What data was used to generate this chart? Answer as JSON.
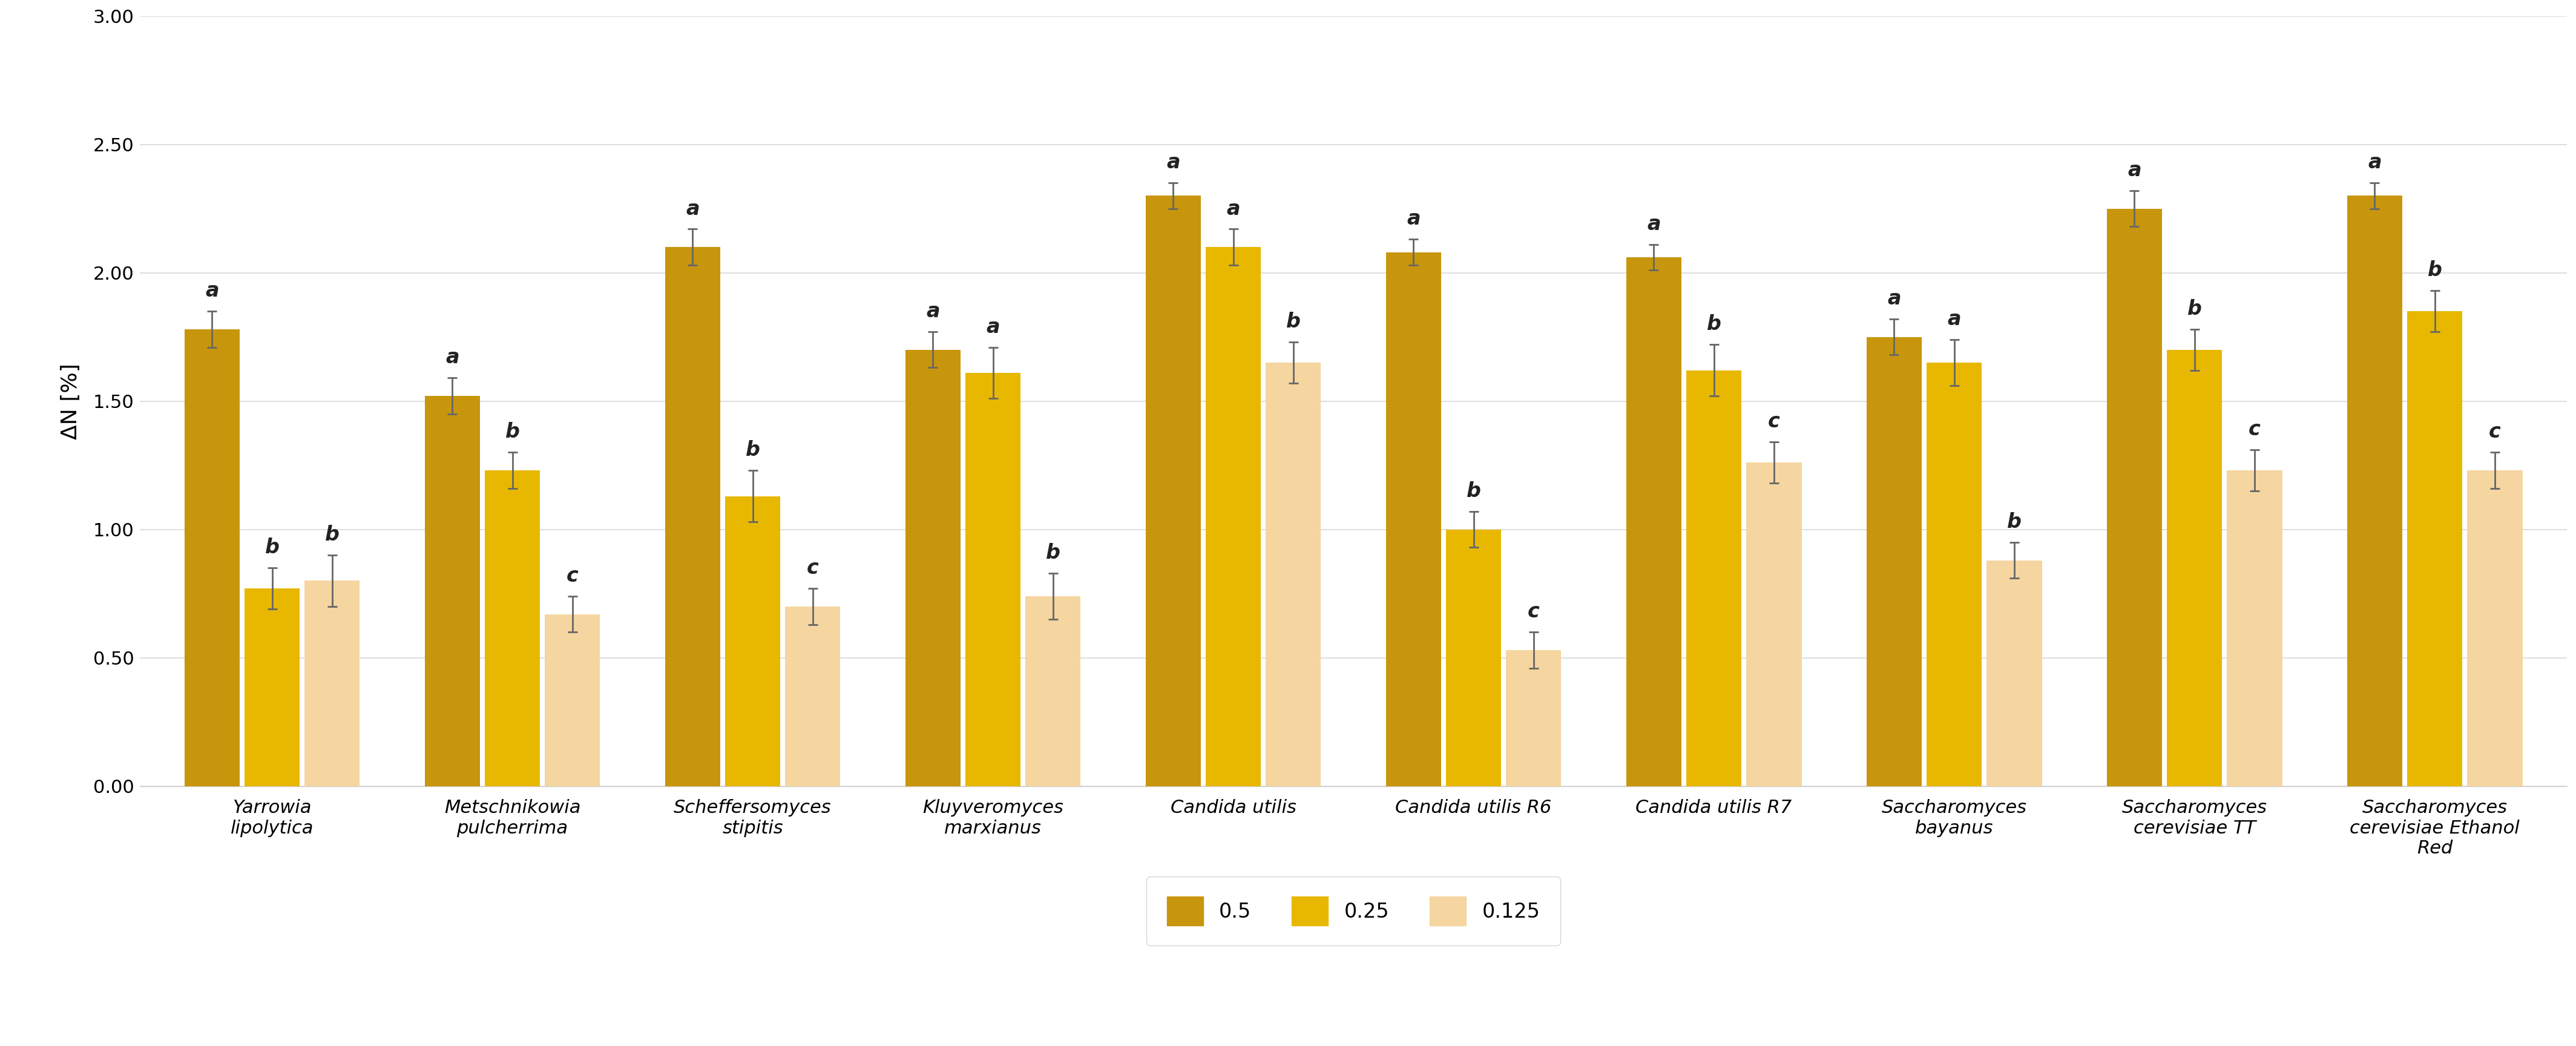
{
  "categories": [
    "Yarrowia\nlipolytica",
    "Metschnikowia\npulcherrima",
    "Scheffersomyces\nstipitis",
    "Kluyveromyces\nmarxianus",
    "Candida utilis",
    "Candida utilis R6",
    "Candida utilis R7",
    "Saccharomyces\nbayanus",
    "Saccharomyces\ncerevisiae TT",
    "Saccharomyces\ncerevisiae Ethanol\nRed"
  ],
  "series": {
    "0.5": {
      "values": [
        1.78,
        1.52,
        2.1,
        1.7,
        2.3,
        2.08,
        2.06,
        1.75,
        2.25,
        2.3
      ],
      "errors": [
        0.07,
        0.07,
        0.07,
        0.07,
        0.05,
        0.05,
        0.05,
        0.07,
        0.07,
        0.05
      ],
      "color": "#C8960C",
      "labels": [
        "a",
        "a",
        "a",
        "a",
        "a",
        "a",
        "a",
        "a",
        "a",
        "a"
      ]
    },
    "0.25": {
      "values": [
        0.77,
        1.23,
        1.13,
        1.61,
        2.1,
        1.0,
        1.62,
        1.65,
        1.7,
        1.85
      ],
      "errors": [
        0.08,
        0.07,
        0.1,
        0.1,
        0.07,
        0.07,
        0.1,
        0.09,
        0.08,
        0.08
      ],
      "color": "#E8B800",
      "labels": [
        "b",
        "b",
        "b",
        "a",
        "a",
        "b",
        "b",
        "a",
        "b",
        "b"
      ]
    },
    "0.125": {
      "values": [
        0.8,
        0.67,
        0.7,
        0.74,
        1.65,
        0.53,
        1.26,
        0.88,
        1.23,
        1.23
      ],
      "errors": [
        0.1,
        0.07,
        0.07,
        0.09,
        0.08,
        0.07,
        0.08,
        0.07,
        0.08,
        0.07
      ],
      "color": "#F5D5A0",
      "labels": [
        "b",
        "c",
        "c",
        "b",
        "b",
        "c",
        "c",
        "b",
        "c",
        "c"
      ]
    }
  },
  "ylabel": "ΔN [%]",
  "ylim": [
    0.0,
    3.0
  ],
  "yticks": [
    0.0,
    0.5,
    1.0,
    1.5,
    2.0,
    2.5,
    3.0
  ],
  "bar_width": 0.25,
  "legend_labels": [
    "0.5",
    "0.25",
    "0.125"
  ],
  "background_color": "#FFFFFF",
  "grid_color": "#D8D8D8",
  "tick_fontsize": 22,
  "legend_fontsize": 24,
  "annotation_fontsize": 24,
  "ylabel_fontsize": 26
}
